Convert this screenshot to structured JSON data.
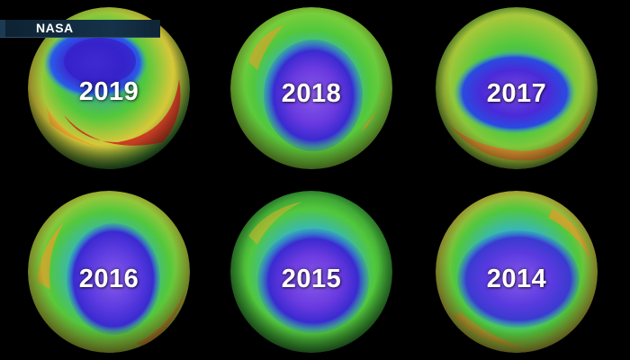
{
  "credit": {
    "source_label": "NASA"
  },
  "globes": [
    {
      "year": "2019"
    },
    {
      "year": "2018"
    },
    {
      "year": "2017"
    },
    {
      "year": "2016"
    },
    {
      "year": "2015"
    },
    {
      "year": "2014"
    }
  ],
  "colors": {
    "background": "#000000",
    "banner": "#15324a",
    "ozone_high": "#c8281e",
    "ozone_mid_high": "#e89a2a",
    "ozone_mid": "#52c83c",
    "ozone_low": "#2a8ae0",
    "ozone_hole": "#3a1fc8",
    "ozone_hole_core": "#7a4ae0"
  }
}
